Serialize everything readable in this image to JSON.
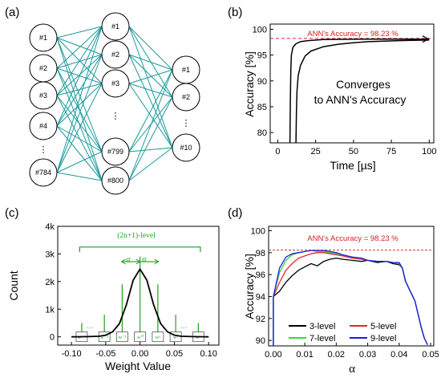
{
  "panel_labels": [
    "(a)",
    "(b)",
    "(c)",
    "(d)"
  ],
  "network": {
    "input_nodes": [
      "#1",
      "#2",
      "#3",
      "#4",
      "⋮",
      "#784"
    ],
    "hidden_nodes": [
      "#1",
      "#2",
      "#3",
      "⋮",
      "#799",
      "#800"
    ],
    "output_nodes": [
      "#1",
      "#2",
      "⋮",
      "#10"
    ],
    "edge_color": "#1a9a9a"
  },
  "chart_data": [
    {
      "panel": "(b)",
      "type": "line",
      "xlabel": "Time [µs]",
      "ylabel": "Accuracy [%]",
      "xlim": [
        -5,
        103
      ],
      "ylim": [
        78,
        101
      ],
      "xticks": [
        "0",
        "25",
        "50",
        "75",
        "100"
      ],
      "yticks": [
        "80",
        "85",
        "90",
        "95",
        "100"
      ],
      "reference_line": {
        "label": "ANN's Accuracy = 98.23 %",
        "y": 98.23,
        "color": "#e8262a"
      },
      "annotation": [
        "Converges",
        "to ANN's Accuracy"
      ],
      "series": [
        {
          "x": [
            8,
            8.3,
            8.6,
            9,
            10,
            12,
            15,
            20,
            30,
            40,
            60,
            80,
            100
          ],
          "y": [
            78,
            86,
            92,
            95,
            96.5,
            97.2,
            97.6,
            97.8,
            98.0,
            98.05,
            98.1,
            98.1,
            98.1
          ]
        },
        {
          "x": [
            12,
            12.3,
            12.7,
            13.5,
            15,
            18,
            22,
            30,
            40,
            50,
            60,
            80,
            100
          ],
          "y": [
            78,
            84,
            88,
            91,
            93,
            94.8,
            95.8,
            96.6,
            97.1,
            97.4,
            97.6,
            97.8,
            97.9
          ]
        }
      ]
    },
    {
      "panel": "(c)",
      "type": "line",
      "xlabel": "Weight Value",
      "ylabel": "Count",
      "xlim": [
        -0.12,
        0.115
      ],
      "ylim": [
        -300,
        4000
      ],
      "xticks": [
        "-0.10",
        "-0.05",
        "0.00",
        "0.05",
        "0.10"
      ],
      "yticks": [
        "0",
        "1k",
        "2k",
        "3k",
        "4k"
      ],
      "bracket_label": "(2n+1)-level",
      "alpha_labels": [
        "α",
        "α"
      ],
      "weight_labels": [
        "w⁻ⁿ",
        "w⁻²",
        "w⁻¹",
        "w⁰",
        "w¹",
        "w²",
        "wⁿ"
      ],
      "dots": [
        "···",
        "···"
      ],
      "series": [
        {
          "x": [
            -0.1,
            -0.08,
            -0.06,
            -0.05,
            -0.04,
            -0.03,
            -0.02,
            -0.01,
            0.0,
            0.01,
            0.02,
            0.03,
            0.04,
            0.05,
            0.06,
            0.08,
            0.1
          ],
          "y": [
            0,
            5,
            20,
            60,
            180,
            480,
            1150,
            2050,
            2450,
            2050,
            1150,
            480,
            180,
            60,
            20,
            5,
            0
          ]
        }
      ]
    },
    {
      "panel": "(d)",
      "type": "line",
      "xlabel": "α",
      "ylabel": "Accuracy [%]",
      "xlim": [
        -0.0015,
        0.051
      ],
      "ylim": [
        89.5,
        100.4
      ],
      "xticks": [
        "0.00",
        "0.01",
        "0.02",
        "0.03",
        "0.04",
        "0.05"
      ],
      "yticks": [
        "90",
        "92",
        "94",
        "96",
        "98",
        "100"
      ],
      "reference_line": {
        "label": "ANN's Accuracy = 98.23 %",
        "y": 98.23,
        "color": "#e8262a"
      },
      "series": [
        {
          "name": "3-level",
          "color": "#000000",
          "x": [
            0,
            0.002,
            0.004,
            0.006,
            0.008,
            0.01,
            0.012,
            0.014,
            0.016,
            0.018,
            0.02,
            0.022,
            0.025,
            0.028,
            0.03,
            0.033,
            0.036,
            0.038,
            0.04,
            0.041,
            0.042,
            0.043,
            0.044,
            0.045,
            0.046,
            0.047,
            0.048,
            0.049
          ],
          "y": [
            94.0,
            94.5,
            95.3,
            95.9,
            96.4,
            96.7,
            97.0,
            96.8,
            97.2,
            97.4,
            97.5,
            97.4,
            97.3,
            97.2,
            97.3,
            97.1,
            97.2,
            97.0,
            96.9,
            96.6,
            95.4,
            94.8,
            94.2,
            93.6,
            92.4,
            91.2,
            90.2,
            89.6
          ]
        },
        {
          "name": "5-level",
          "color": "#e8262a",
          "x": [
            0,
            0.002,
            0.004,
            0.006,
            0.008,
            0.01,
            0.012,
            0.014,
            0.016,
            0.018,
            0.02,
            0.022,
            0.025,
            0.028,
            0.03,
            0.033,
            0.036,
            0.038,
            0.04,
            0.041,
            0.042,
            0.043,
            0.044,
            0.045,
            0.046,
            0.047,
            0.048,
            0.049
          ],
          "y": [
            94.0,
            95.3,
            96.4,
            97.0,
            97.5,
            97.7,
            97.9,
            98.0,
            98.0,
            97.9,
            97.8,
            97.7,
            97.5,
            97.4,
            97.3,
            97.2,
            97.2,
            97.1,
            97.0,
            96.6,
            95.4,
            94.8,
            94.2,
            93.6,
            92.4,
            91.2,
            90.2,
            89.6
          ]
        },
        {
          "name": "7-level",
          "color": "#2ee02e",
          "x": [
            0,
            0.002,
            0.004,
            0.006,
            0.008,
            0.01,
            0.012,
            0.014,
            0.016,
            0.018,
            0.02,
            0.022,
            0.025,
            0.028,
            0.03,
            0.033,
            0.036,
            0.038,
            0.04,
            0.041,
            0.042,
            0.043,
            0.044,
            0.045,
            0.046,
            0.047,
            0.048,
            0.049
          ],
          "y": [
            94.0,
            96.2,
            97.3,
            97.8,
            98.0,
            98.1,
            98.2,
            98.1,
            98.1,
            98.0,
            97.9,
            97.8,
            97.6,
            97.5,
            97.3,
            97.2,
            97.2,
            97.1,
            97.0,
            96.6,
            95.4,
            94.8,
            94.2,
            93.6,
            92.4,
            91.2,
            90.2,
            89.6
          ]
        },
        {
          "name": "9-level",
          "color": "#1a1aee",
          "x": [
            0,
            0.002,
            0.004,
            0.006,
            0.008,
            0.01,
            0.012,
            0.014,
            0.016,
            0.018,
            0.02,
            0.022,
            0.025,
            0.028,
            0.03,
            0.033,
            0.036,
            0.038,
            0.04,
            0.041,
            0.042,
            0.043,
            0.044,
            0.045,
            0.046,
            0.047,
            0.048,
            0.049
          ],
          "y": [
            94.0,
            96.6,
            97.6,
            97.9,
            98.0,
            98.1,
            98.2,
            98.2,
            98.2,
            98.1,
            98.0,
            97.8,
            97.6,
            97.5,
            97.3,
            97.2,
            97.2,
            97.1,
            97.1,
            96.6,
            95.4,
            94.8,
            94.2,
            93.6,
            92.4,
            91.2,
            90.2,
            89.6
          ]
        }
      ]
    }
  ]
}
